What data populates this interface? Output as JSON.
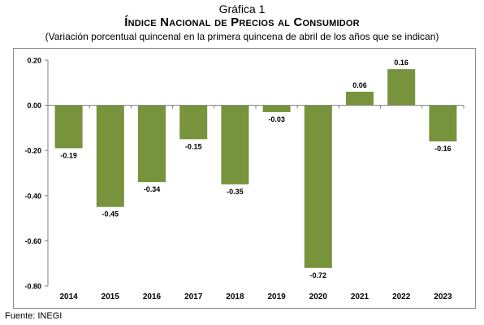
{
  "header": {
    "figure_label": "Gráfica 1",
    "title": "Índice Nacional de Precios al Consumidor",
    "subtitle": "(Variación porcentual quincenal en la primera quincena de abril de los años que se indican)"
  },
  "source": "Fuente: INEGI",
  "colors": {
    "bar": "#77933C",
    "axis": "#808080"
  },
  "chart_data": {
    "type": "bar",
    "categories": [
      "2014",
      "2015",
      "2016",
      "2017",
      "2018",
      "2019",
      "2020",
      "2021",
      "2022",
      "2023"
    ],
    "values": [
      -0.19,
      -0.45,
      -0.34,
      -0.15,
      -0.35,
      -0.03,
      -0.72,
      0.06,
      0.16,
      -0.16
    ],
    "value_labels": [
      "-0.19",
      "-0.45",
      "-0.34",
      "-0.15",
      "-0.35",
      "-0.03",
      "-0.72",
      "0.06",
      "0.16",
      "-0.16"
    ],
    "ylim": [
      -0.8,
      0.2
    ],
    "yticks": [
      0.2,
      0.0,
      -0.2,
      -0.4,
      -0.6,
      -0.8
    ],
    "ytick_labels": [
      "0.20",
      "0.00",
      "-0.20",
      "-0.40",
      "-0.60",
      "-0.80"
    ],
    "grid": false,
    "legend": "none"
  }
}
